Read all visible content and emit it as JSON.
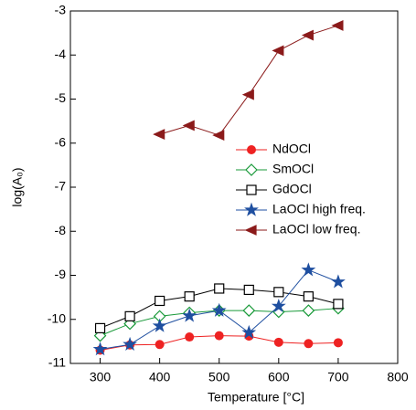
{
  "chart_data": {
    "type": "line",
    "xlabel": "Temperature [°C]",
    "ylabel": "log(A₀)",
    "x": [
      300,
      350,
      400,
      450,
      500,
      550,
      600,
      650,
      700
    ],
    "xlim": [
      250,
      800
    ],
    "xticks": [
      300,
      400,
      500,
      600,
      700,
      800
    ],
    "ylim": [
      -11,
      -3
    ],
    "yticks": [
      -11,
      -10,
      -9,
      -8,
      -7,
      -6,
      -5,
      -4,
      -3
    ],
    "series": [
      {
        "name": "NdOCl",
        "color": "#ee2222",
        "marker": "circle",
        "values": [
          -10.7,
          -10.58,
          -10.57,
          -10.4,
          -10.37,
          -10.38,
          -10.52,
          -10.55,
          -10.53
        ]
      },
      {
        "name": "SmOCl",
        "color": "#1a9a3a",
        "marker": "diamond",
        "values": [
          -10.37,
          -10.1,
          -9.93,
          -9.85,
          -9.8,
          -9.8,
          -9.83,
          -9.8,
          -9.75
        ]
      },
      {
        "name": "GdOCl",
        "color": "#000000",
        "marker": "square",
        "values": [
          -10.2,
          -9.93,
          -9.58,
          -9.48,
          -9.3,
          -9.33,
          -9.38,
          -9.48,
          -9.65
        ]
      },
      {
        "name": "LaOCl high freq.",
        "color": "#1f4fa0",
        "marker": "star",
        "values": [
          -10.68,
          -10.57,
          -10.15,
          -9.92,
          -9.8,
          -10.3,
          -9.7,
          -8.88,
          -9.15
        ]
      },
      {
        "name": "LaOCl low freq.",
        "color": "#8b1a1a",
        "marker": "triangle-left",
        "values": [
          null,
          null,
          -5.8,
          -5.6,
          -5.82,
          -4.9,
          -3.9,
          -3.55,
          -3.33
        ]
      }
    ]
  }
}
